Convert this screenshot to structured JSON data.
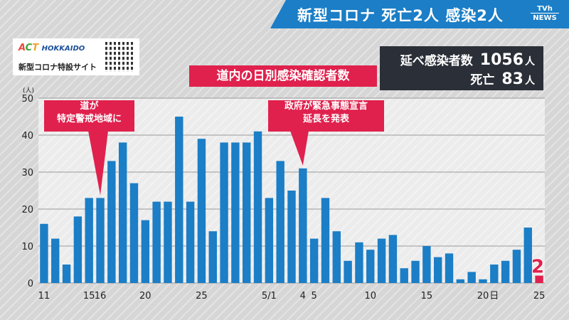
{
  "header": {
    "title": "新型コロナ 死亡2人 感染2人",
    "logo_top": "TVh",
    "logo_bottom": "NEWS"
  },
  "promo": {
    "brand_a": "A",
    "brand_c": "C",
    "brand_t": "T",
    "brand_region": "HOKKAIDO",
    "site_label": "新型コロナ特設サイト"
  },
  "stats": {
    "cumulative_label": "延べ感染者数",
    "cumulative_value": "1056",
    "deaths_label": "死亡",
    "deaths_value": "83",
    "unit": "人"
  },
  "callouts": {
    "left": [
      "道が",
      "特定警戒地域に"
    ],
    "right": [
      "政府が緊急事態宣言",
      "延長を発表"
    ]
  },
  "colors": {
    "bar": "#1b7ec6",
    "highlight": "#e0214d",
    "header": "#1b7ec6"
  },
  "chart_data": {
    "type": "bar",
    "title": "道内の日別感染確認者数",
    "ylabel": "(人)",
    "ylim": [
      0,
      50
    ],
    "yticks": [
      0,
      10,
      20,
      30,
      40,
      50
    ],
    "grid": true,
    "x_tick_labels": [
      {
        "index": 0,
        "label": "11"
      },
      {
        "index": 4,
        "label": "15"
      },
      {
        "index": 5,
        "label": "16"
      },
      {
        "index": 9,
        "label": "20"
      },
      {
        "index": 14,
        "label": "25"
      },
      {
        "index": 20,
        "label": "5/1"
      },
      {
        "index": 23,
        "label": "4"
      },
      {
        "index": 24,
        "label": "5"
      },
      {
        "index": 29,
        "label": "10"
      },
      {
        "index": 34,
        "label": "15"
      },
      {
        "index": 39,
        "label": "20"
      },
      {
        "index": 40,
        "label": "日"
      },
      {
        "index": 44,
        "label": "25"
      }
    ],
    "categories": [
      "4/11",
      "4/12",
      "4/13",
      "4/14",
      "4/15",
      "4/16",
      "4/17",
      "4/18",
      "4/19",
      "4/20",
      "4/21",
      "4/22",
      "4/23",
      "4/24",
      "4/25",
      "4/26",
      "4/27",
      "4/28",
      "4/29",
      "4/30",
      "5/1",
      "5/2",
      "5/3",
      "5/4",
      "5/5",
      "5/6",
      "5/7",
      "5/8",
      "5/9",
      "5/10",
      "5/11",
      "5/12",
      "5/13",
      "5/14",
      "5/15",
      "5/16",
      "5/17",
      "5/18",
      "5/19",
      "5/20",
      "5/21",
      "5/22",
      "5/23",
      "5/24",
      "5/25"
    ],
    "values": [
      16,
      12,
      5,
      18,
      23,
      23,
      33,
      38,
      27,
      17,
      22,
      22,
      45,
      22,
      39,
      14,
      38,
      38,
      38,
      41,
      23,
      33,
      25,
      31,
      12,
      23,
      14,
      6,
      11,
      9,
      12,
      13,
      4,
      6,
      10,
      7,
      8,
      1,
      3,
      1,
      5,
      6,
      9,
      15,
      2
    ],
    "highlight_index": 44,
    "highlight_label": "2"
  }
}
